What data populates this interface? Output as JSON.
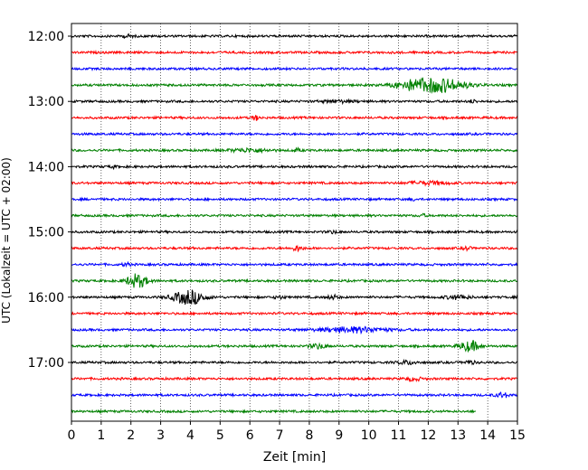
{
  "chart_data": {
    "type": "line",
    "chart_kind": "helicorder",
    "xlabel": "Zeit  [min]",
    "ylabel": "UTC (Lokalzeit = UTC + 02:00)",
    "xlim": [
      0,
      15
    ],
    "x_ticks": [
      0,
      1,
      2,
      3,
      4,
      5,
      6,
      7,
      8,
      9,
      10,
      11,
      12,
      13,
      14,
      15
    ],
    "x_tick_labels": [
      "0",
      "1",
      "2",
      "3",
      "4",
      "5",
      "6",
      "7",
      "8",
      "9",
      "10",
      "11",
      "12",
      "13",
      "14",
      "15"
    ],
    "y_tick_labels": [
      "12:00",
      "13:00",
      "14:00",
      "15:00",
      "16:00",
      "17:00"
    ],
    "y_tick_trace_index": [
      0,
      4,
      8,
      12,
      16,
      20
    ],
    "grid": {
      "x": "dotted-vertical",
      "y": false
    },
    "trace_start_times": [
      "12:00",
      "12:15",
      "12:30",
      "12:45",
      "13:00",
      "13:15",
      "13:30",
      "13:45",
      "14:00",
      "14:15",
      "14:30",
      "14:45",
      "15:00",
      "15:15",
      "15:30",
      "15:45",
      "16:00",
      "16:15",
      "16:30",
      "16:45",
      "17:00",
      "17:15",
      "17:30",
      "17:45"
    ],
    "trace_colors": [
      "#000000",
      "#ff0000",
      "#0000ff",
      "#008000"
    ],
    "last_trace_end_min": 13.6,
    "events": [
      {
        "trace": 0,
        "t": 1.9,
        "amp": 0.4,
        "dur": 0.3
      },
      {
        "trace": 3,
        "t": 12.3,
        "amp": 2.2,
        "dur": 1.6
      },
      {
        "trace": 3,
        "t": 11.3,
        "amp": 0.8,
        "dur": 1.0
      },
      {
        "trace": 4,
        "t": 9.0,
        "amp": 0.35,
        "dur": 1.0
      },
      {
        "trace": 4,
        "t": 13.5,
        "amp": 0.5,
        "dur": 0.2
      },
      {
        "trace": 5,
        "t": 6.2,
        "amp": 0.7,
        "dur": 0.2
      },
      {
        "trace": 7,
        "t": 6.0,
        "amp": 0.5,
        "dur": 1.2
      },
      {
        "trace": 7,
        "t": 7.6,
        "amp": 0.5,
        "dur": 0.2
      },
      {
        "trace": 8,
        "t": 1.4,
        "amp": 0.35,
        "dur": 0.2
      },
      {
        "trace": 9,
        "t": 12.0,
        "amp": 0.45,
        "dur": 1.2
      },
      {
        "trace": 10,
        "t": 11.5,
        "amp": 0.3,
        "dur": 0.2
      },
      {
        "trace": 11,
        "t": 11.8,
        "amp": 0.4,
        "dur": 0.2
      },
      {
        "trace": 12,
        "t": 8.8,
        "amp": 0.35,
        "dur": 0.3
      },
      {
        "trace": 13,
        "t": 7.6,
        "amp": 0.8,
        "dur": 0.3
      },
      {
        "trace": 13,
        "t": 13.3,
        "amp": 0.6,
        "dur": 0.2
      },
      {
        "trace": 14,
        "t": 1.85,
        "amp": 0.6,
        "dur": 0.2
      },
      {
        "trace": 15,
        "t": 2.2,
        "amp": 2.1,
        "dur": 0.6
      },
      {
        "trace": 16,
        "t": 3.95,
        "amp": 2.2,
        "dur": 0.9
      },
      {
        "trace": 16,
        "t": 7.0,
        "amp": 0.4,
        "dur": 0.3
      },
      {
        "trace": 16,
        "t": 8.8,
        "amp": 0.6,
        "dur": 0.3
      },
      {
        "trace": 16,
        "t": 13.0,
        "amp": 0.6,
        "dur": 0.7
      },
      {
        "trace": 18,
        "t": 9.5,
        "amp": 0.8,
        "dur": 2.0
      },
      {
        "trace": 19,
        "t": 8.3,
        "amp": 0.7,
        "dur": 0.5
      },
      {
        "trace": 19,
        "t": 13.4,
        "amp": 1.6,
        "dur": 0.6
      },
      {
        "trace": 20,
        "t": 11.3,
        "amp": 0.5,
        "dur": 0.6
      },
      {
        "trace": 20,
        "t": 13.4,
        "amp": 0.5,
        "dur": 0.3
      },
      {
        "trace": 21,
        "t": 11.5,
        "amp": 0.5,
        "dur": 0.5
      },
      {
        "trace": 22,
        "t": 14.5,
        "amp": 0.7,
        "dur": 0.4
      }
    ]
  }
}
